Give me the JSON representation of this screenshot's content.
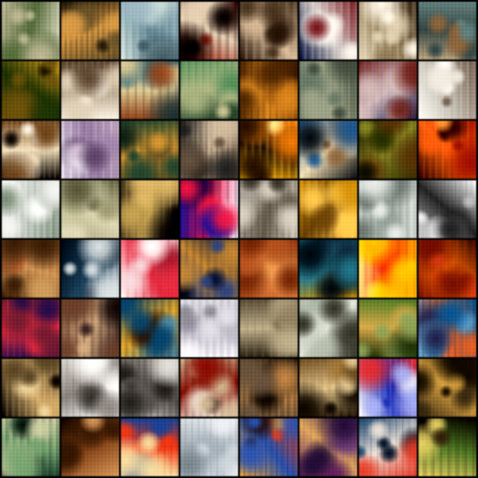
{
  "grid": {
    "rows": 8,
    "cols": 8,
    "tiles": [
      {
        "palette": [
          "#b8b49a",
          "#5e6f4a",
          "#e7e3d3",
          "#3b3326"
        ]
      },
      {
        "palette": [
          "#2b2418",
          "#c79a5b",
          "#6b5a3a",
          "#0f0d09"
        ]
      },
      {
        "palette": [
          "#9fb3bb",
          "#6f8a93",
          "#d3ddd8",
          "#4b5f66"
        ]
      },
      {
        "palette": [
          "#3a0f0c",
          "#d9c9b4",
          "#8b2a1d",
          "#0d0706"
        ]
      },
      {
        "palette": [
          "#4a3a2a",
          "#c9b39a",
          "#2d1f15",
          "#e7d7c4"
        ]
      },
      {
        "palette": [
          "#0e1738",
          "#c9c3c0",
          "#6a1f24",
          "#f0ece6"
        ]
      },
      {
        "palette": [
          "#d8cdb6",
          "#8a7a5e",
          "#3b2e1f",
          "#f2ece0"
        ]
      },
      {
        "palette": [
          "#6b8584",
          "#3a4b4b",
          "#b5a58a",
          "#8c6b4a"
        ]
      },
      {
        "palette": [
          "#6e5a24",
          "#2c3d18",
          "#c79c3c",
          "#1c1a0c"
        ]
      },
      {
        "palette": [
          "#efe9de",
          "#a89b88",
          "#5d4b3b",
          "#d4c8b5"
        ]
      },
      {
        "palette": [
          "#4c6f77",
          "#d4c59c",
          "#8a4d2d",
          "#2a3b3c"
        ]
      },
      {
        "palette": [
          "#5e8a63",
          "#a9b08a",
          "#324a35",
          "#c8c39f"
        ]
      },
      {
        "palette": [
          "#7b4a1e",
          "#c98b3c",
          "#4e3016",
          "#2a1a0c"
        ]
      },
      {
        "palette": [
          "#6e7a6c",
          "#9ea28d",
          "#4a5347",
          "#b9b8a3"
        ]
      },
      {
        "palette": [
          "#1c1d40",
          "#c9b7b5",
          "#6a2f2a",
          "#8c7b9e"
        ]
      },
      {
        "palette": [
          "#f4f2ee",
          "#b3aea5",
          "#6f5f52",
          "#e3dfd7"
        ]
      },
      {
        "palette": [
          "#0f0b08",
          "#e3d4b9",
          "#6a4a2a",
          "#f3ecdf"
        ]
      },
      {
        "palette": [
          "#e5dfe8",
          "#9b86a2",
          "#c8b8c8",
          "#5f4b66"
        ]
      },
      {
        "palette": [
          "#2e4b3b",
          "#c89a4d",
          "#6b5a35",
          "#1b2a22"
        ]
      },
      {
        "palette": [
          "#2a2a2a",
          "#c9b8a3",
          "#6b5b4c",
          "#0e0e0e"
        ]
      },
      {
        "palette": [
          "#f2b324",
          "#2a1a0a",
          "#d9822b",
          "#fff0a8"
        ]
      },
      {
        "palette": [
          "#2d5b86",
          "#e4d6b7",
          "#101418",
          "#8a6b4c"
        ]
      },
      {
        "palette": [
          "#2f3512",
          "#8b8b3e",
          "#15180a",
          "#5a3b1c"
        ]
      },
      {
        "palette": [
          "#8a1f0a",
          "#e1692b",
          "#2a0a06",
          "#f5a252"
        ]
      },
      {
        "palette": [
          "#e9e9e6",
          "#b7bdb6",
          "#7c8a7a",
          "#f7f7f5"
        ]
      },
      {
        "palette": [
          "#9b987a",
          "#d6d2b8",
          "#5b5a42",
          "#c3c0a2"
        ]
      },
      {
        "palette": [
          "#0c0a0b",
          "#b9a064",
          "#4a3e2a",
          "#d4b77a"
        ]
      },
      {
        "palette": [
          "#1b1e8a",
          "#d02a4b",
          "#f0f0f5",
          "#0a0c3a"
        ]
      },
      {
        "palette": [
          "#a9a39a",
          "#6b6459",
          "#d2cbc0",
          "#3f3a33"
        ]
      },
      {
        "palette": [
          "#c8962d",
          "#6e4e1f",
          "#f0c86b",
          "#3a2a10"
        ]
      },
      {
        "palette": [
          "#e0e2df",
          "#97a09a",
          "#bfc4bf",
          "#6f7772"
        ]
      },
      {
        "palette": [
          "#f8f8f8",
          "#2b2b2b",
          "#bdbdbd",
          "#6a6a6a"
        ]
      },
      {
        "palette": [
          "#7e5a3a",
          "#c19b6a",
          "#3d2817",
          "#a24a2e"
        ]
      },
      {
        "palette": [
          "#08111a",
          "#2f4a5e",
          "#d3d8d8",
          "#1a2a38"
        ]
      },
      {
        "palette": [
          "#fbf7f5",
          "#c63a4a",
          "#e7d4d6",
          "#8b2232"
        ]
      },
      {
        "palette": [
          "#0e1a3a",
          "#b88a4a",
          "#3a4a78",
          "#0a0c18"
        ]
      },
      {
        "palette": [
          "#a45a34",
          "#d99a62",
          "#6b2f18",
          "#c47a4a"
        ]
      },
      {
        "palette": [
          "#1c2a38",
          "#3a7a8a",
          "#c5962e",
          "#0c1218"
        ]
      },
      {
        "palette": [
          "#f3c300",
          "#d23a1a",
          "#fff2a0",
          "#8a2a3a"
        ]
      },
      {
        "palette": [
          "#6a1e0a",
          "#e1732b",
          "#2c0f06",
          "#b8472a"
        ]
      },
      {
        "palette": [
          "#6b2a3a",
          "#c83a4a",
          "#2b1a4a",
          "#d7a86b"
        ]
      },
      {
        "palette": [
          "#3a2a2a",
          "#c8aa8a",
          "#6a4a3a",
          "#1a1212"
        ]
      },
      {
        "palette": [
          "#1a4a6a",
          "#d4a84a",
          "#5a8aa0",
          "#2a1a12"
        ]
      },
      {
        "palette": [
          "#f0eff2",
          "#b9b6bf",
          "#d9d7dd",
          "#8d8a93"
        ]
      },
      {
        "palette": [
          "#5b5241",
          "#b8ad92",
          "#2b2519",
          "#8e836b"
        ]
      },
      {
        "palette": [
          "#8f9a8c",
          "#d8dad2",
          "#3a3a30",
          "#b4b9ac"
        ]
      },
      {
        "palette": [
          "#5a7a3a",
          "#c8a860",
          "#2c3a1a",
          "#90a068"
        ]
      },
      {
        "palette": [
          "#1a5a8a",
          "#d06a3a",
          "#6aa0c0",
          "#2a2a4a"
        ]
      },
      {
        "palette": [
          "#0d0a08",
          "#c6a877",
          "#5a4a32",
          "#e1cfa6"
        ]
      },
      {
        "palette": [
          "#f5f4f1",
          "#8a8580",
          "#cfccc6",
          "#3c3a36"
        ]
      },
      {
        "palette": [
          "#d9d7d3",
          "#5b5753",
          "#aaa6a0",
          "#2a2825"
        ]
      },
      {
        "palette": [
          "#e8e3d8",
          "#7a1a12",
          "#c8b59a",
          "#1a0f0a"
        ]
      },
      {
        "palette": [
          "#2a241c",
          "#b88a5a",
          "#6a5a4a",
          "#0e0b08"
        ]
      },
      {
        "palette": [
          "#18120c",
          "#d8c39a",
          "#6a5232",
          "#9a7a4a"
        ]
      },
      {
        "palette": [
          "#f6f3ef",
          "#2a3aa0",
          "#c83a3a",
          "#a8aee0"
        ]
      },
      {
        "palette": [
          "#3b3020",
          "#c8a058",
          "#1a140c",
          "#8a7040"
        ]
      },
      {
        "palette": [
          "#1f3a2e",
          "#7fa07a",
          "#c8c8a8",
          "#0e1a14"
        ]
      },
      {
        "palette": [
          "#1a100a",
          "#7a4a2a",
          "#c89a6a",
          "#3a2414"
        ]
      },
      {
        "palette": [
          "#2a4a8a",
          "#d2462a",
          "#e8d6a8",
          "#0e1428"
        ]
      },
      {
        "palette": [
          "#e2e4e6",
          "#a6aeb4",
          "#c8ced2",
          "#7a848a"
        ]
      },
      {
        "palette": [
          "#d24a2a",
          "#3a5aa0",
          "#f0b04a",
          "#2a1a1a"
        ]
      },
      {
        "palette": [
          "#5a2a5a",
          "#d0a86a",
          "#2a1a3a",
          "#a06aa0"
        ]
      },
      {
        "palette": [
          "#2a4a6a",
          "#e0d8d0",
          "#c84a3a",
          "#0e1a2a"
        ]
      },
      {
        "palette": [
          "#0a0806",
          "#5a7a3a",
          "#d8c878",
          "#3a2a1a"
        ]
      }
    ]
  }
}
